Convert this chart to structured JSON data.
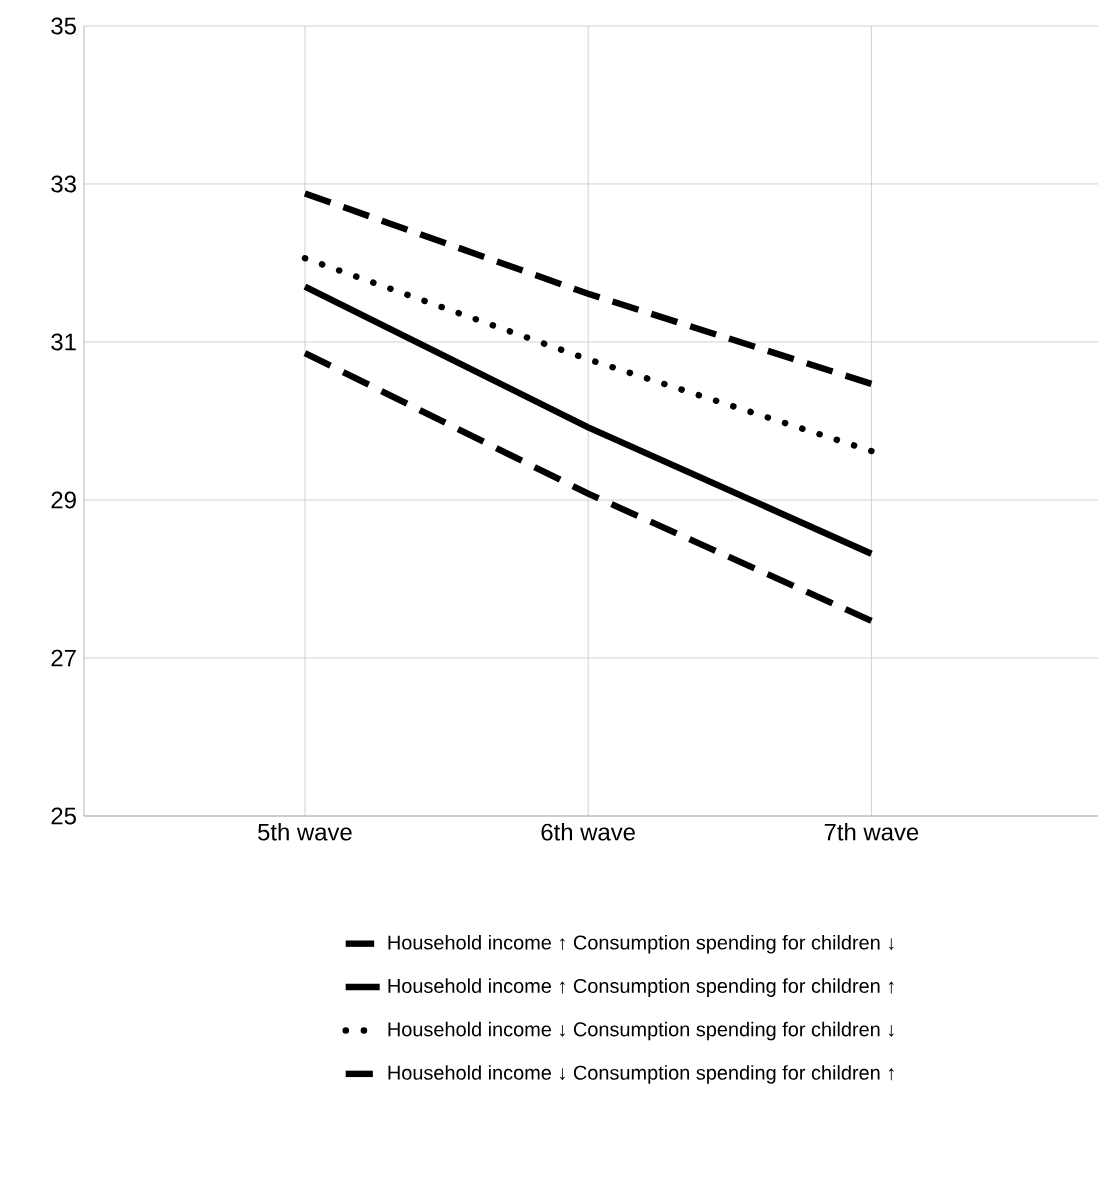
{
  "chart_data": {
    "type": "line",
    "categories": [
      "5th wave",
      "6th wave",
      "7th wave"
    ],
    "series": [
      {
        "name": "Household income ↑  Consumption spending for children ↓",
        "color": "#000000",
        "line_style": "dashed",
        "values": [
          30.86,
          29.08,
          27.47
        ]
      },
      {
        "name": "Household income ↑  Consumption spending for children ↑",
        "color": "#000000",
        "line_style": "solid",
        "values": [
          31.7,
          29.92,
          28.32
        ]
      },
      {
        "name": "Household income ↓  Consumption spending for children ↓",
        "color": "#000000",
        "line_style": "dotted",
        "values": [
          32.06,
          30.78,
          29.62
        ]
      },
      {
        "name": "Household income ↓  Consumption spending for children ↑",
        "color": "#000000",
        "line_style": "dashed",
        "values": [
          32.88,
          31.61,
          30.47
        ]
      }
    ],
    "ylim": [
      25,
      35
    ],
    "yticks": [
      25,
      27,
      29,
      31,
      33,
      35
    ],
    "grid": true,
    "legend": "bottom",
    "marker": "none"
  }
}
